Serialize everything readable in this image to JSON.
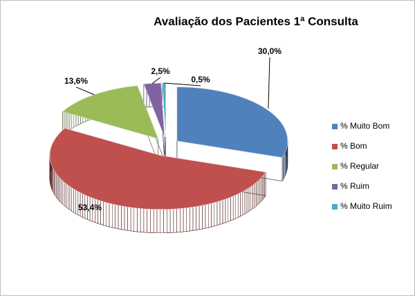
{
  "chart_data": {
    "type": "pie3d",
    "title": "Avaliação dos Pacientes 1ª Consulta",
    "series": [
      {
        "name": "% Muito Bom",
        "color": "#4f81bd"
      },
      {
        "name": "% Bom",
        "color": "#c0504d"
      },
      {
        "name": "% Regular",
        "color": "#9bbb59"
      },
      {
        "name": "% Ruim",
        "color": "#8064a2"
      },
      {
        "name": "% Muito Ruim",
        "color": "#4bacc6"
      }
    ],
    "values": [
      30.0,
      53.4,
      13.6,
      2.5,
      0.5
    ],
    "value_labels": [
      "30,0%",
      "53,4%",
      "13,6%",
      "2,5%",
      "0,5%"
    ],
    "legend": "right"
  }
}
